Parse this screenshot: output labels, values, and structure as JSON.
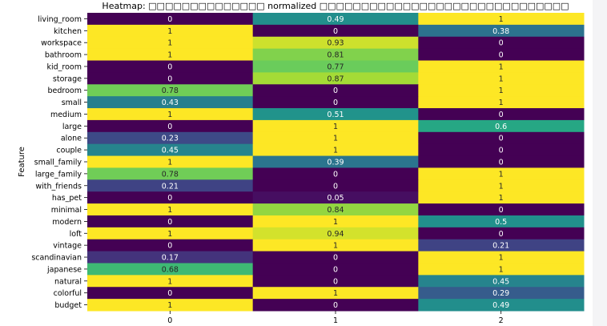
{
  "chart_data": {
    "type": "heatmap",
    "title": "Heatmap: □□□□□□□□□□□□□□ normalized □□□□□□□□□□□□□□□□□□□□□□□□□□□□□□",
    "xlabel": "",
    "ylabel": "Feature",
    "columns": [
      "0",
      "1",
      "2"
    ],
    "rows": [
      "living_room",
      "kitchen",
      "workspace",
      "bathroom",
      "kid_room",
      "storage",
      "bedroom",
      "small",
      "medium",
      "large",
      "alone",
      "couple",
      "small_family",
      "large_family",
      "with_friends",
      "has_pet",
      "minimal",
      "modern",
      "loft",
      "vintage",
      "scandinavian",
      "japanese",
      "natural",
      "colorful",
      "budget"
    ],
    "values": [
      [
        0,
        0.49,
        1
      ],
      [
        1,
        0,
        0.38
      ],
      [
        1,
        0.93,
        0
      ],
      [
        1,
        0.81,
        0
      ],
      [
        0,
        0.77,
        1
      ],
      [
        0,
        0.87,
        1
      ],
      [
        0.78,
        0,
        1
      ],
      [
        0.43,
        0,
        1
      ],
      [
        1,
        0.51,
        0
      ],
      [
        0,
        1,
        0.6
      ],
      [
        0.23,
        1,
        0
      ],
      [
        0.45,
        1,
        0
      ],
      [
        1,
        0.39,
        0
      ],
      [
        0.78,
        0,
        1
      ],
      [
        0.21,
        0,
        1
      ],
      [
        0,
        0.05,
        1
      ],
      [
        1,
        0.84,
        0
      ],
      [
        0,
        1,
        0.5
      ],
      [
        1,
        0.94,
        0
      ],
      [
        0,
        1,
        0.21
      ],
      [
        0.17,
        0,
        1
      ],
      [
        0.68,
        0,
        1
      ],
      [
        1,
        0,
        0.45
      ],
      [
        0,
        1,
        0.29
      ],
      [
        1,
        0,
        0.49
      ]
    ],
    "value_range": [
      0,
      1
    ],
    "colormap": "viridis",
    "grid": false,
    "legend": "none"
  }
}
